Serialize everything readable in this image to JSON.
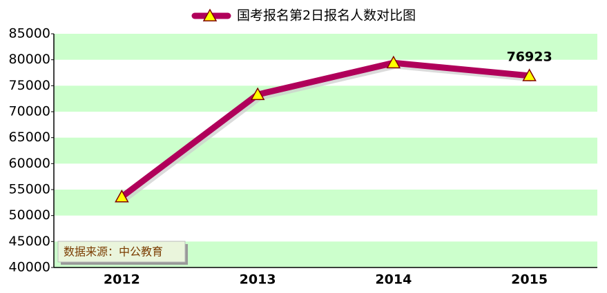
{
  "chart_data": {
    "type": "line",
    "categories": [
      "2012",
      "2013",
      "2014",
      "2015"
    ],
    "series": [
      {
        "name": "国考报名第2日报名人数对比图",
        "color": "#b0005a",
        "marker_color": "#ffff00",
        "values": [
          53600,
          73300,
          79400,
          76923
        ]
      }
    ],
    "ylim": [
      40000,
      85000
    ],
    "yticks": [
      40000,
      45000,
      50000,
      55000,
      60000,
      65000,
      70000,
      75000,
      80000,
      85000
    ],
    "band_color": "#ccffcc",
    "annotation": "数据来源：中公教育"
  }
}
